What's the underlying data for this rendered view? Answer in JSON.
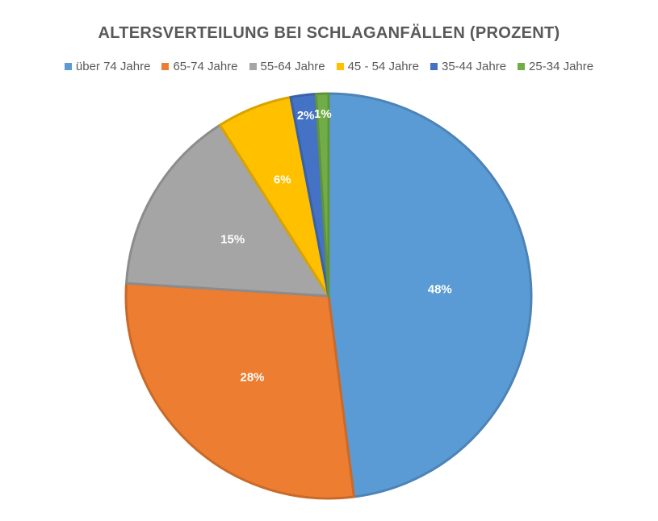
{
  "chart_data": {
    "type": "pie",
    "title": "ALTERSVERTEILUNG BEI SCHLAGANFÄLLEN (PROZENT)",
    "legend_position": "top",
    "slices": [
      {
        "label": "über 74 Jahre",
        "value": 48,
        "display": "48%",
        "color": "#5B9BD5"
      },
      {
        "label": "65-74 Jahre",
        "value": 28,
        "display": "28%",
        "color": "#ED7D31"
      },
      {
        "label": "55-64 Jahre",
        "value": 15,
        "display": "15%",
        "color": "#A5A5A5"
      },
      {
        "label": "45 - 54 Jahre",
        "value": 6,
        "display": "6%",
        "color": "#FFC000"
      },
      {
        "label": "35-44 Jahre",
        "value": 2,
        "display": "2%",
        "color": "#4472C4"
      },
      {
        "label": "25-34 Jahre",
        "value": 1,
        "display": "1%",
        "color": "#70AD47"
      }
    ]
  }
}
